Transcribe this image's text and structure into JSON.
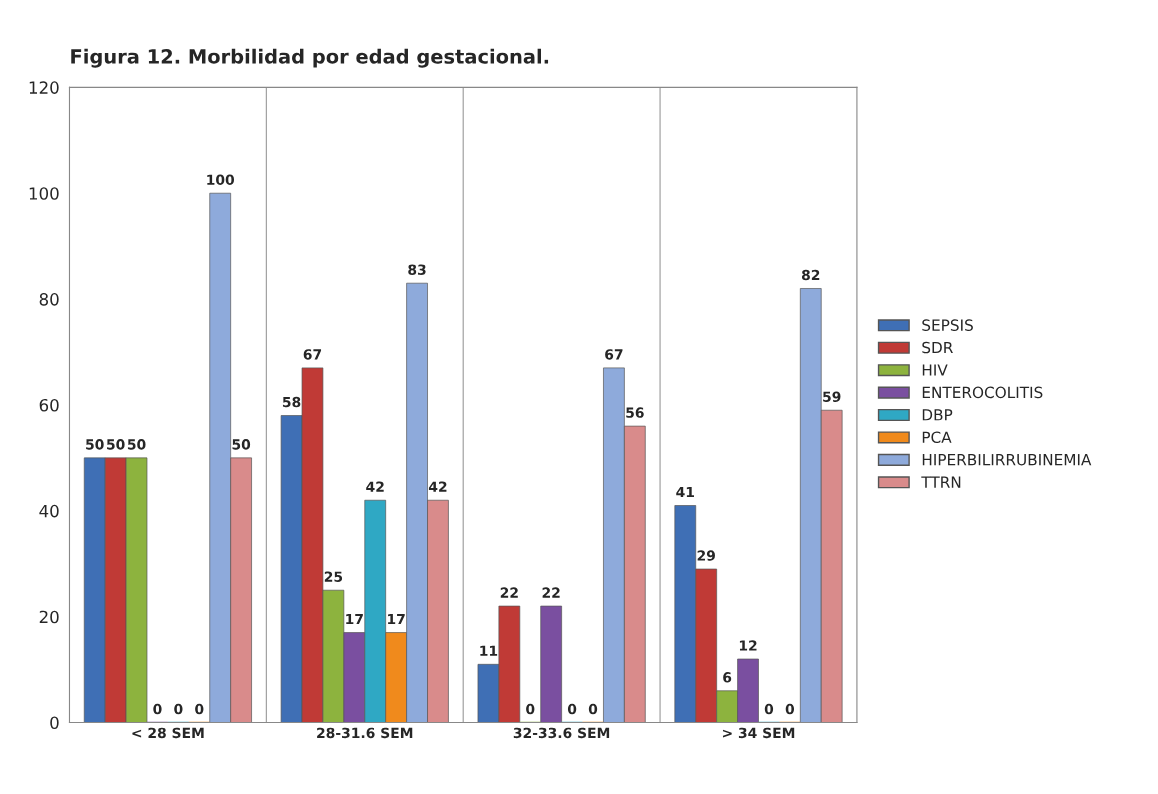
{
  "chart_data": {
    "type": "bar",
    "title": "Figura 12. Morbilidad por edad gestacional.",
    "categories": [
      "< 28 SEM",
      "28-31.6 SEM",
      "32-33.6 SEM",
      "> 34 SEM"
    ],
    "series": [
      {
        "name": "SEPSIS",
        "color": "#3f6fb5",
        "values": [
          50,
          58,
          11,
          41
        ]
      },
      {
        "name": "SDR",
        "color": "#c03a36",
        "values": [
          50,
          67,
          22,
          29
        ]
      },
      {
        "name": "HIV",
        "color": "#8db33e",
        "values": [
          50,
          25,
          0,
          6
        ]
      },
      {
        "name": "ENTEROCOLITIS",
        "color": "#7a4fa0",
        "values": [
          0,
          17,
          22,
          12
        ]
      },
      {
        "name": "DBP",
        "color": "#2fa8c4",
        "values": [
          0,
          42,
          0,
          0
        ]
      },
      {
        "name": "PCA",
        "color": "#f08a1c",
        "values": [
          0,
          17,
          0,
          0
        ]
      },
      {
        "name": "HIPERBILIRRUBINEMIA",
        "color": "#8eaadb",
        "values": [
          100,
          83,
          67,
          82
        ]
      },
      {
        "name": "TTRN",
        "color": "#d98b8b",
        "values": [
          50,
          42,
          56,
          59
        ]
      }
    ],
    "ylim": [
      0,
      120
    ],
    "yticks": [
      0,
      20,
      40,
      60,
      80,
      100,
      120
    ],
    "grid": "x",
    "legend": "right",
    "data_labels": true
  }
}
